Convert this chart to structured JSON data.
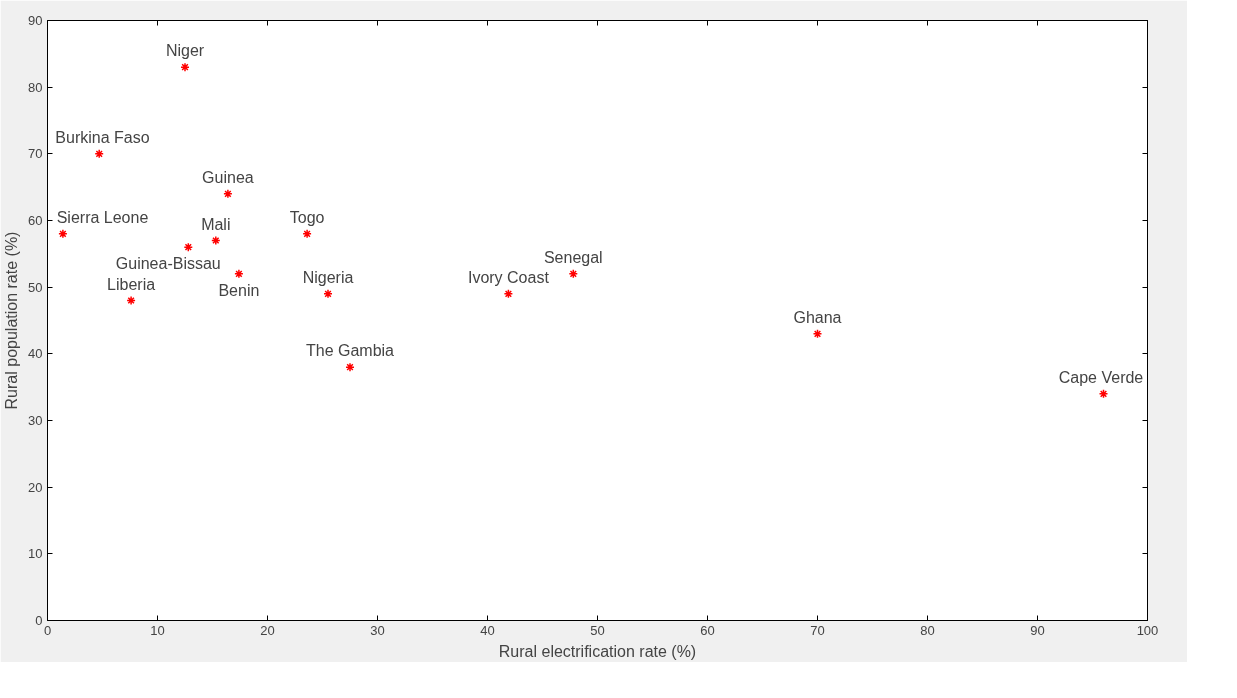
{
  "chart_data": {
    "type": "scatter",
    "xlabel": "Rural electrification rate (%)",
    "ylabel": "Rural population rate (%)",
    "x": [
      12.5,
      4.7,
      16.4,
      1.4,
      15.3,
      23.6,
      12.8,
      17.4,
      25.5,
      7.6,
      41.9,
      47.8,
      70.0,
      27.5,
      96.0
    ],
    "series": [
      {
        "color": "#ff0000",
        "values": [
          83,
          70,
          64,
          58,
          57,
          58,
          56,
          52,
          49,
          48,
          49,
          52,
          43,
          38,
          34
        ]
      }
    ],
    "annotations": [
      {
        "text": "Niger",
        "x": 12.5,
        "y": 83
      },
      {
        "text": "Burkina Faso",
        "x": 4.7,
        "y": 70
      },
      {
        "text": "Guinea",
        "x": 16.4,
        "y": 64
      },
      {
        "text": "Sierra Leone",
        "x": 1.4,
        "y": 58
      },
      {
        "text": "Mali",
        "x": 15.3,
        "y": 57
      },
      {
        "text": "Togo",
        "x": 23.6,
        "y": 58
      },
      {
        "text": "Guinea-Bissau",
        "x": 12.8,
        "y": 56
      },
      {
        "text": "Benin",
        "x": 17.4,
        "y": 52
      },
      {
        "text": "Nigeria",
        "x": 25.5,
        "y": 49
      },
      {
        "text": "Liberia",
        "x": 7.6,
        "y": 48
      },
      {
        "text": "Ivory Coast",
        "x": 41.9,
        "y": 49
      },
      {
        "text": "Senegal",
        "x": 47.8,
        "y": 52
      },
      {
        "text": "Ghana",
        "x": 70.0,
        "y": 43
      },
      {
        "text": "The Gambia",
        "x": 27.5,
        "y": 38
      },
      {
        "text": "Cape Verde",
        "x": 96.0,
        "y": 34
      }
    ],
    "xlim": [
      0,
      100
    ],
    "ylim": [
      0,
      90
    ],
    "xticks": [
      0,
      10,
      20,
      30,
      40,
      50,
      60,
      70,
      80,
      90,
      100
    ],
    "yticks": [
      0,
      10,
      20,
      30,
      40,
      50,
      60,
      70,
      80,
      90
    ],
    "marker": "cross",
    "grid": false
  }
}
